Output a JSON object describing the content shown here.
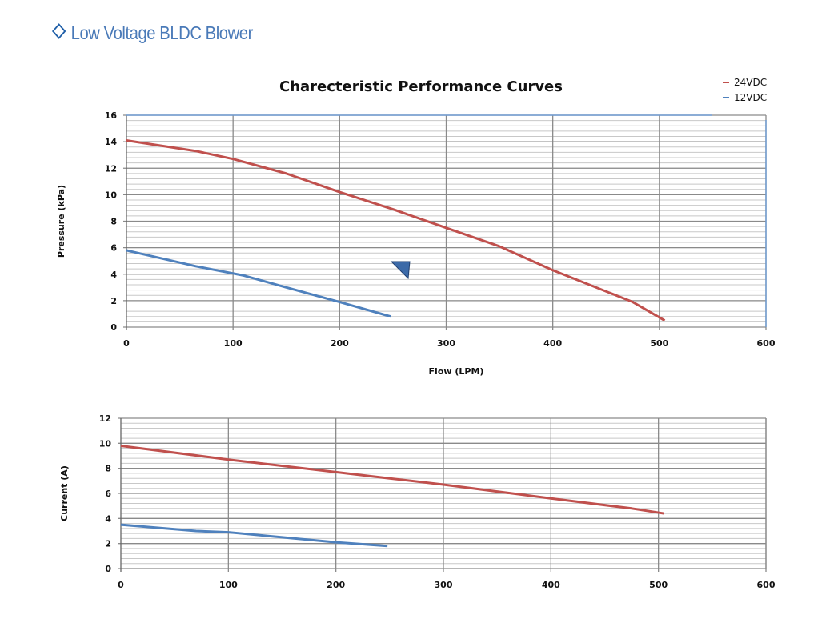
{
  "heading": "Low Voltage BLDC Blower",
  "colors": {
    "24VDC": "#c0504d",
    "12VDC": "#4f81bd",
    "heading": "#4a7ab8"
  },
  "chart_data": [
    {
      "type": "line",
      "title": "Charecteristic Performance Curves",
      "xlabel": "Flow (LPM)",
      "ylabel": "Pressure (kPa)",
      "xlim": [
        0,
        600
      ],
      "ylim": [
        0,
        16
      ],
      "xticks": [
        0,
        100,
        200,
        300,
        400,
        500,
        600
      ],
      "yticks": [
        0,
        2,
        4,
        6,
        8,
        10,
        12,
        14,
        16
      ],
      "grid": true,
      "legend": "top-right",
      "series": [
        {
          "name": "24VDC",
          "x": [
            0,
            65,
            100,
            150,
            200,
            250,
            300,
            350,
            400,
            475,
            505
          ],
          "y": [
            14.1,
            13.3,
            12.7,
            11.6,
            10.2,
            8.9,
            7.5,
            6.1,
            4.3,
            1.9,
            0.5
          ]
        },
        {
          "name": "12VDC",
          "x": [
            0,
            65,
            110,
            150,
            200,
            248
          ],
          "y": [
            5.8,
            4.6,
            3.9,
            3.0,
            1.9,
            0.8
          ]
        }
      ]
    },
    {
      "type": "line",
      "title": "",
      "xlabel": "",
      "ylabel": "Current (A)",
      "xlim": [
        0,
        600
      ],
      "ylim": [
        0,
        12
      ],
      "xticks": [
        0,
        100,
        200,
        300,
        400,
        500,
        600
      ],
      "yticks": [
        0,
        2,
        4,
        6,
        8,
        10,
        12
      ],
      "grid": true,
      "series": [
        {
          "name": "24VDC",
          "x": [
            0,
            100,
            200,
            250,
            300,
            400,
            475,
            505
          ],
          "y": [
            9.8,
            8.7,
            7.7,
            7.2,
            6.7,
            5.6,
            4.8,
            4.4
          ]
        },
        {
          "name": "12VDC",
          "x": [
            0,
            70,
            100,
            150,
            200,
            248
          ],
          "y": [
            3.5,
            3.0,
            2.9,
            2.5,
            2.1,
            1.8
          ]
        }
      ]
    }
  ]
}
